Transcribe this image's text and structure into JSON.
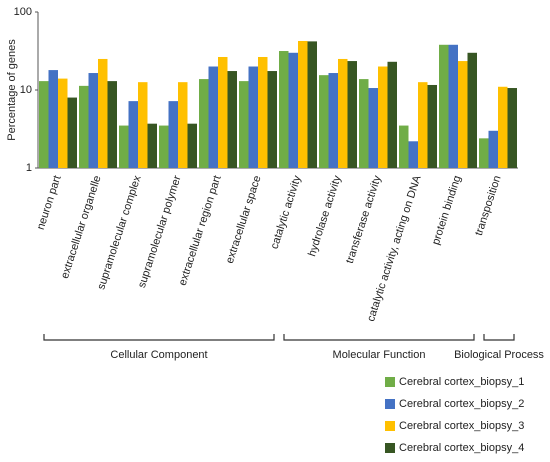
{
  "chart_data": {
    "type": "bar",
    "y_label": "Percentage of genes",
    "log_scale": true,
    "ylim": [
      1,
      100
    ],
    "yticks": [
      1,
      10,
      100
    ],
    "categories": [
      "neuron part",
      "extracellular organelle",
      "supramolecular complex",
      "supramolecular polymer",
      "extracellular region part",
      "extracellular space",
      "catalytic activity",
      "hydrolase activity",
      "transferase activity",
      "catalytic activity, acting on DNA",
      "protein binding",
      "transposition"
    ],
    "groups": [
      {
        "label": "Cellular Component",
        "count": 6
      },
      {
        "label": "Molecular Function",
        "count": 5
      },
      {
        "label": "Biological Process",
        "count": 1
      }
    ],
    "legend_position": "bottom-right",
    "series": [
      {
        "name": "Cerebral cortex_biopsy_1",
        "color": "#70ad47",
        "values": [
          13,
          11.3,
          3.5,
          3.5,
          13.8,
          13,
          31.6,
          15.5,
          13.8,
          3.5,
          38,
          2.4
        ]
      },
      {
        "name": "Cerebral cortex_biopsy_2",
        "color": "#4472c4",
        "values": [
          18,
          16.5,
          7.2,
          7.2,
          20,
          20,
          30,
          16.5,
          10.6,
          2.2,
          38,
          3
        ]
      },
      {
        "name": "Cerebral cortex_biopsy_3",
        "color": "#ffc000",
        "values": [
          14,
          25,
          12.6,
          12.6,
          26.5,
          26.5,
          42.5,
          25,
          20,
          12.6,
          23.5,
          11
        ]
      },
      {
        "name": "Cerebral cortex_biopsy_4",
        "color": "#375623",
        "values": [
          8,
          13,
          3.7,
          3.7,
          17.5,
          17.5,
          42,
          23.5,
          23,
          11.6,
          30,
          10.6
        ]
      }
    ]
  }
}
